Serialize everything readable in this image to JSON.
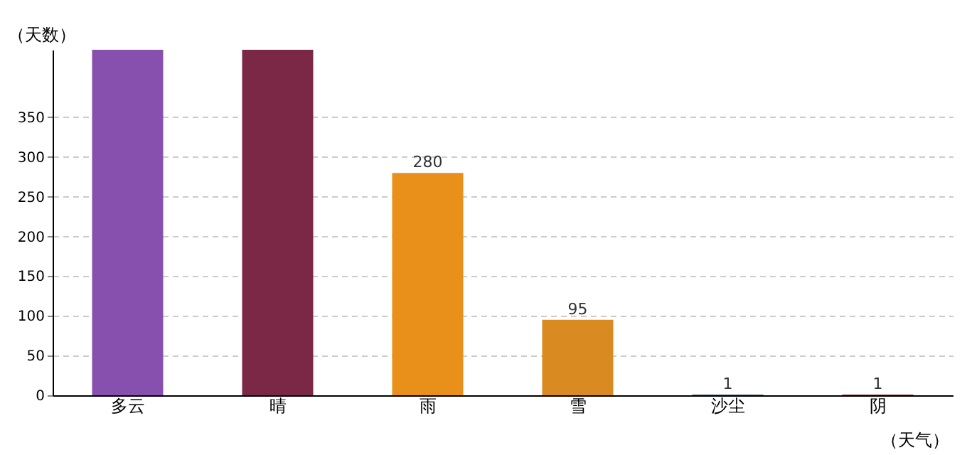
{
  "chart_data": {
    "type": "bar",
    "xlabel": "（天气）",
    "ylabel": "（天数）",
    "categories": [
      "多云",
      "晴",
      "雨",
      "雪",
      "沙尘",
      "阴"
    ],
    "values": [
      435,
      435,
      280,
      95,
      1,
      1
    ],
    "colors": [
      "#874fae",
      "#7b2846",
      "#e89019",
      "#d98a21",
      "#3d5c6e",
      "#8b2d2d"
    ],
    "value_labels": [
      null,
      null,
      "280",
      "95",
      "1",
      "1"
    ],
    "ylim": [
      0,
      435
    ],
    "yticks": [
      0,
      50,
      100,
      150,
      200,
      250,
      300,
      350
    ],
    "grid": "y"
  }
}
